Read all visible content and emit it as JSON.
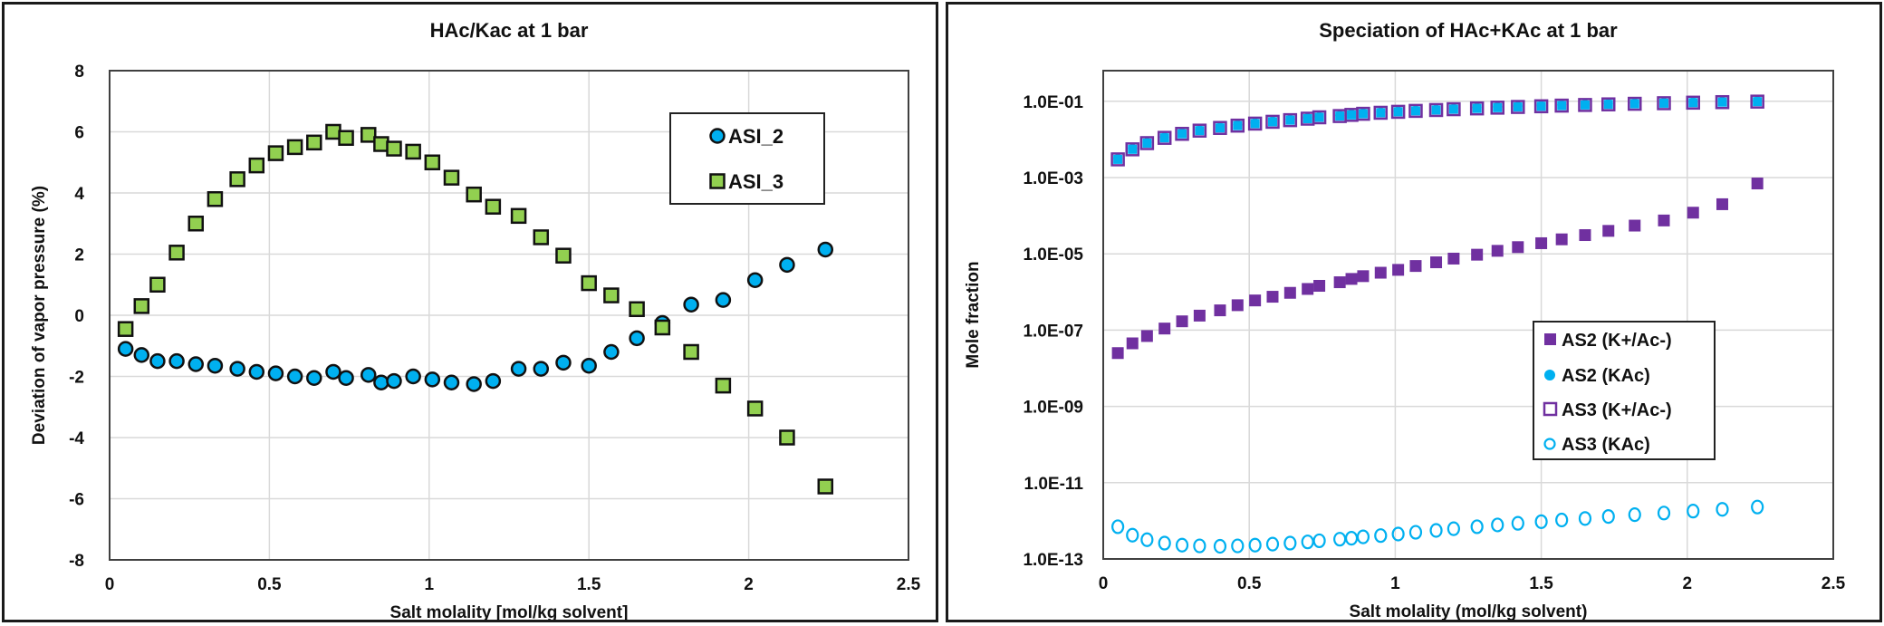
{
  "chart_data": [
    {
      "type": "scatter",
      "title": "HAc/Kac at 1 bar",
      "xlabel": "Salt molality [mol/kg solvent]",
      "ylabel": "Deviation of vapor pressure (%)",
      "xlim": [
        0,
        2.5
      ],
      "ylim": [
        -8,
        8
      ],
      "xticks": [
        "0",
        "0.5",
        "1",
        "1.5",
        "2",
        "2.5"
      ],
      "yticks": [
        "8",
        "6",
        "4",
        "2",
        "0",
        "-2",
        "-4",
        "-6",
        "-8"
      ],
      "grid": true,
      "legend_position": "top-right",
      "series": [
        {
          "name": "ASI_2",
          "marker": "circle",
          "color": "#00B0F0",
          "x": [
            0.05,
            0.1,
            0.15,
            0.21,
            0.27,
            0.33,
            0.4,
            0.46,
            0.52,
            0.58,
            0.64,
            0.7,
            0.74,
            0.81,
            0.85,
            0.89,
            0.95,
            1.01,
            1.07,
            1.14,
            1.2,
            1.28,
            1.35,
            1.42,
            1.5,
            1.57,
            1.65,
            1.73,
            1.82,
            1.92,
            2.02,
            2.12,
            2.24
          ],
          "y": [
            -1.1,
            -1.3,
            -1.5,
            -1.5,
            -1.6,
            -1.65,
            -1.75,
            -1.85,
            -1.9,
            -2.0,
            -2.05,
            -1.85,
            -2.05,
            -1.95,
            -2.2,
            -2.15,
            -2.0,
            -2.1,
            -2.2,
            -2.25,
            -2.15,
            -1.75,
            -1.75,
            -1.55,
            -1.65,
            -1.2,
            -0.75,
            -0.25,
            0.35,
            0.5,
            1.15,
            1.65,
            2.15
          ]
        },
        {
          "name": "ASI_3",
          "marker": "square",
          "color": "#92D050",
          "x": [
            0.05,
            0.1,
            0.15,
            0.21,
            0.27,
            0.33,
            0.4,
            0.46,
            0.52,
            0.58,
            0.64,
            0.7,
            0.74,
            0.81,
            0.85,
            0.89,
            0.95,
            1.01,
            1.07,
            1.14,
            1.2,
            1.28,
            1.35,
            1.42,
            1.5,
            1.57,
            1.65,
            1.73,
            1.82,
            1.92,
            2.02,
            2.12,
            2.24
          ],
          "y": [
            -0.45,
            0.3,
            1.0,
            2.05,
            3.0,
            3.8,
            4.45,
            4.9,
            5.3,
            5.5,
            5.65,
            6.0,
            5.8,
            5.9,
            5.6,
            5.45,
            5.35,
            5.0,
            4.5,
            3.95,
            3.55,
            3.25,
            2.55,
            1.95,
            1.05,
            0.65,
            0.2,
            -0.4,
            -1.2,
            -2.3,
            -3.05,
            -4.0,
            -5.6
          ]
        }
      ]
    },
    {
      "type": "scatter",
      "title": "Speciation of HAc+KAc at 1 bar",
      "xlabel": "Salt molality (mol/kg solvent)",
      "ylabel": "Mole fraction",
      "yscale": "log",
      "xlim": [
        0,
        2.5
      ],
      "ylim": [
        1e-13,
        1
      ],
      "xticks": [
        "0",
        "0.5",
        "1",
        "1.5",
        "2",
        "2.5"
      ],
      "yticks": [
        "1.0E-01",
        "1.0E-03",
        "1.0E-05",
        "1.0E-07",
        "1.0E-09",
        "1.0E-11",
        "1.0E-13"
      ],
      "grid": true,
      "legend_position": "bottom-right",
      "x": [
        0.05,
        0.1,
        0.15,
        0.21,
        0.27,
        0.33,
        0.4,
        0.46,
        0.52,
        0.58,
        0.64,
        0.7,
        0.74,
        0.81,
        0.85,
        0.89,
        0.95,
        1.01,
        1.07,
        1.14,
        1.2,
        1.28,
        1.35,
        1.42,
        1.5,
        1.57,
        1.65,
        1.73,
        1.82,
        1.92,
        2.02,
        2.12,
        2.24
      ],
      "series": [
        {
          "name": "AS2 (K+/Ac-)",
          "marker": "square-filled",
          "color": "#7030A0",
          "y": [
            2.5e-08,
            4.5e-08,
            7e-08,
            1.1e-07,
            1.7e-07,
            2.4e-07,
            3.3e-07,
            4.5e-07,
            6e-07,
            7.5e-07,
            9.5e-07,
            1.2e-06,
            1.45e-06,
            1.8e-06,
            2.2e-06,
            2.6e-06,
            3.2e-06,
            3.8e-06,
            4.8e-06,
            6e-06,
            7.5e-06,
            9.5e-06,
            1.2e-05,
            1.5e-05,
            1.9e-05,
            2.4e-05,
            3.1e-05,
            4e-05,
            5.5e-05,
            7.5e-05,
            0.00012,
            0.0002,
            0.0007
          ]
        },
        {
          "name": "AS2 (KAc)",
          "marker": "circle-filled",
          "color": "#00B0F0",
          "y": [
            0.003,
            0.0055,
            0.008,
            0.011,
            0.014,
            0.017,
            0.02,
            0.023,
            0.026,
            0.029,
            0.032,
            0.035,
            0.038,
            0.041,
            0.044,
            0.047,
            0.05,
            0.053,
            0.056,
            0.059,
            0.062,
            0.065,
            0.068,
            0.071,
            0.074,
            0.077,
            0.08,
            0.083,
            0.086,
            0.089,
            0.092,
            0.095,
            0.098
          ]
        },
        {
          "name": "AS3 (K+/Ac-)",
          "marker": "square-open",
          "color": "#7030A0",
          "y": [
            0.003,
            0.0055,
            0.008,
            0.011,
            0.014,
            0.017,
            0.02,
            0.023,
            0.026,
            0.029,
            0.032,
            0.035,
            0.038,
            0.041,
            0.044,
            0.047,
            0.05,
            0.053,
            0.056,
            0.059,
            0.062,
            0.065,
            0.068,
            0.071,
            0.074,
            0.077,
            0.08,
            0.083,
            0.086,
            0.089,
            0.092,
            0.095,
            0.098
          ]
        },
        {
          "name": "AS3 (KAc)",
          "marker": "circle-open",
          "color": "#00B0F0",
          "y": [
            7e-13,
            4.2e-13,
            3.2e-13,
            2.6e-13,
            2.3e-13,
            2.2e-13,
            2.15e-13,
            2.2e-13,
            2.3e-13,
            2.45e-13,
            2.6e-13,
            2.8e-13,
            3e-13,
            3.3e-13,
            3.5e-13,
            3.8e-13,
            4.1e-13,
            4.5e-13,
            5e-13,
            5.6e-13,
            6.2e-13,
            7e-13,
            7.8e-13,
            8.6e-13,
            9.5e-13,
            1.05e-12,
            1.15e-12,
            1.3e-12,
            1.45e-12,
            1.6e-12,
            1.8e-12,
            2e-12,
            2.3e-12
          ]
        }
      ]
    }
  ]
}
